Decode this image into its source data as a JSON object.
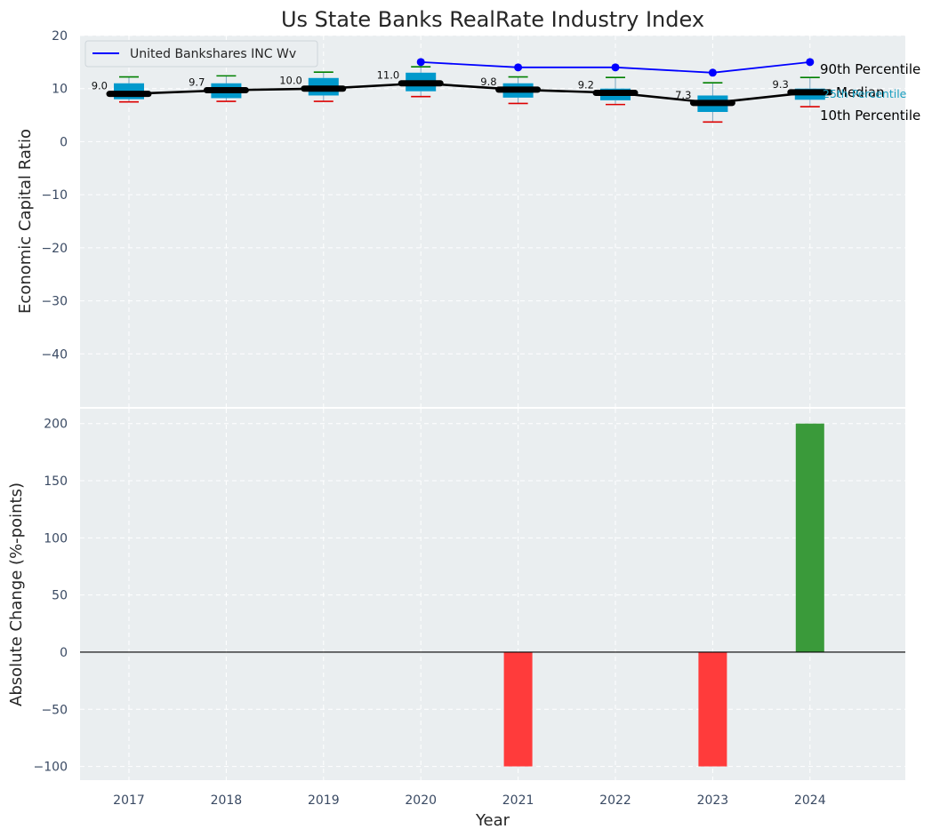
{
  "chart_data": [
    {
      "type": "box",
      "title": "Us State Banks RealRate Industry Index",
      "ylabel": "Economic Capital Ratio",
      "ylim": [
        -50,
        20
      ],
      "yticks": [
        20,
        10,
        0,
        -10,
        -20,
        -30,
        -40
      ],
      "ytick_labels": [
        "20",
        "10",
        "0",
        "−10",
        "−20",
        "−30",
        "−40"
      ],
      "grid": true,
      "categories": [
        "2017",
        "2018",
        "2019",
        "2020",
        "2021",
        "2022",
        "2023",
        "2024"
      ],
      "boxes": [
        {
          "year": "2017",
          "p10": 7.5,
          "p25": 8.0,
          "median": 9.0,
          "p75": 11.0,
          "p90": 12.2
        },
        {
          "year": "2018",
          "p10": 7.6,
          "p25": 8.2,
          "median": 9.7,
          "p75": 11.0,
          "p90": 12.4
        },
        {
          "year": "2019",
          "p10": 7.6,
          "p25": 8.7,
          "median": 10.0,
          "p75": 12.0,
          "p90": 13.1
        },
        {
          "year": "2020",
          "p10": 8.5,
          "p25": 9.5,
          "median": 11.0,
          "p75": 13.0,
          "p90": 14.1
        },
        {
          "year": "2021",
          "p10": 7.2,
          "p25": 8.3,
          "median": 9.8,
          "p75": 11.0,
          "p90": 12.2
        },
        {
          "year": "2022",
          "p10": 7.0,
          "p25": 7.8,
          "median": 9.2,
          "p75": 10.0,
          "p90": 12.1
        },
        {
          "year": "2023",
          "p10": 3.7,
          "p25": 5.6,
          "median": 7.3,
          "p75": 8.7,
          "p90": 11.1
        },
        {
          "year": "2024",
          "p10": 6.6,
          "p25": 7.9,
          "median": 9.3,
          "p75": 10.0,
          "p90": 12.1
        }
      ],
      "median_labels": [
        "9.0",
        "9.7",
        "10.0",
        "11.0",
        "9.8",
        "9.2",
        "7.3",
        "9.3"
      ],
      "series": [
        {
          "name": "United Bankshares INC Wv",
          "color": "#0000ff",
          "x": [
            "2020",
            "2021",
            "2022",
            "2023",
            "2024"
          ],
          "values": [
            15,
            14,
            14,
            13,
            15
          ]
        }
      ],
      "legend": {
        "label": "United Bankshares INC Wv",
        "position": "top-left"
      },
      "annotations": {
        "p90": "90th Percentile",
        "median": "Median",
        "p25": "25th Percentile",
        "p10": "10th Percentile"
      },
      "colors": {
        "box": "#0099cc",
        "median": "#000000",
        "whisker_high": "#008000",
        "whisker_low": "#dd0000",
        "series": "#0000ff",
        "p25_text": "#1a9fc0",
        "background": "#eaeef0"
      }
    },
    {
      "type": "bar",
      "xlabel": "Year",
      "ylabel": "Absolute Change (%-points)",
      "ylim": [
        -112,
        213
      ],
      "yticks": [
        200,
        150,
        100,
        50,
        0,
        -50,
        -100
      ],
      "ytick_labels": [
        "200",
        "150",
        "100",
        "50",
        "0",
        "−50",
        "−100"
      ],
      "categories": [
        "2017",
        "2018",
        "2019",
        "2020",
        "2021",
        "2022",
        "2023",
        "2024"
      ],
      "values": [
        0,
        0,
        0,
        0,
        -100,
        0,
        -100,
        200
      ],
      "colors": {
        "positive": "#3a9a3a",
        "negative": "#ff3b3b",
        "zero_line": "#000000"
      }
    }
  ]
}
